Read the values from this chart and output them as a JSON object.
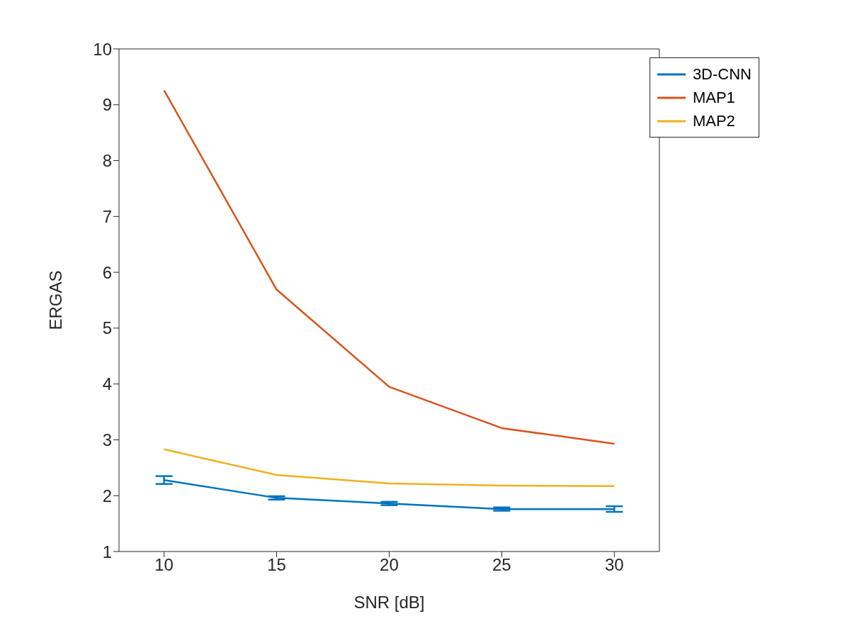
{
  "chart_data": {
    "type": "line",
    "xlabel": "SNR [dB]",
    "ylabel": "ERGAS",
    "x": [
      10,
      15,
      20,
      25,
      30
    ],
    "series": [
      {
        "name": "3D-CNN",
        "color": "#0072bd",
        "values": [
          2.28,
          1.96,
          1.86,
          1.76,
          1.76
        ],
        "errors": [
          0.07,
          0.03,
          0.03,
          0.03,
          0.05
        ]
      },
      {
        "name": "MAP1",
        "color": "#d95319",
        "values": [
          9.26,
          5.69,
          3.95,
          3.21,
          2.93
        ]
      },
      {
        "name": "MAP2",
        "color": "#edb120",
        "values": [
          2.83,
          2.37,
          2.22,
          2.18,
          2.17
        ]
      }
    ],
    "xlim": [
      8,
      32
    ],
    "xticks": [
      10,
      15,
      20,
      25,
      30
    ],
    "ylim": [
      1,
      10
    ],
    "yticks": [
      1,
      2,
      3,
      4,
      5,
      6,
      7,
      8,
      9,
      10
    ],
    "grid": false,
    "legend": "top right",
    "marker": "none",
    "line_style": "solid"
  }
}
